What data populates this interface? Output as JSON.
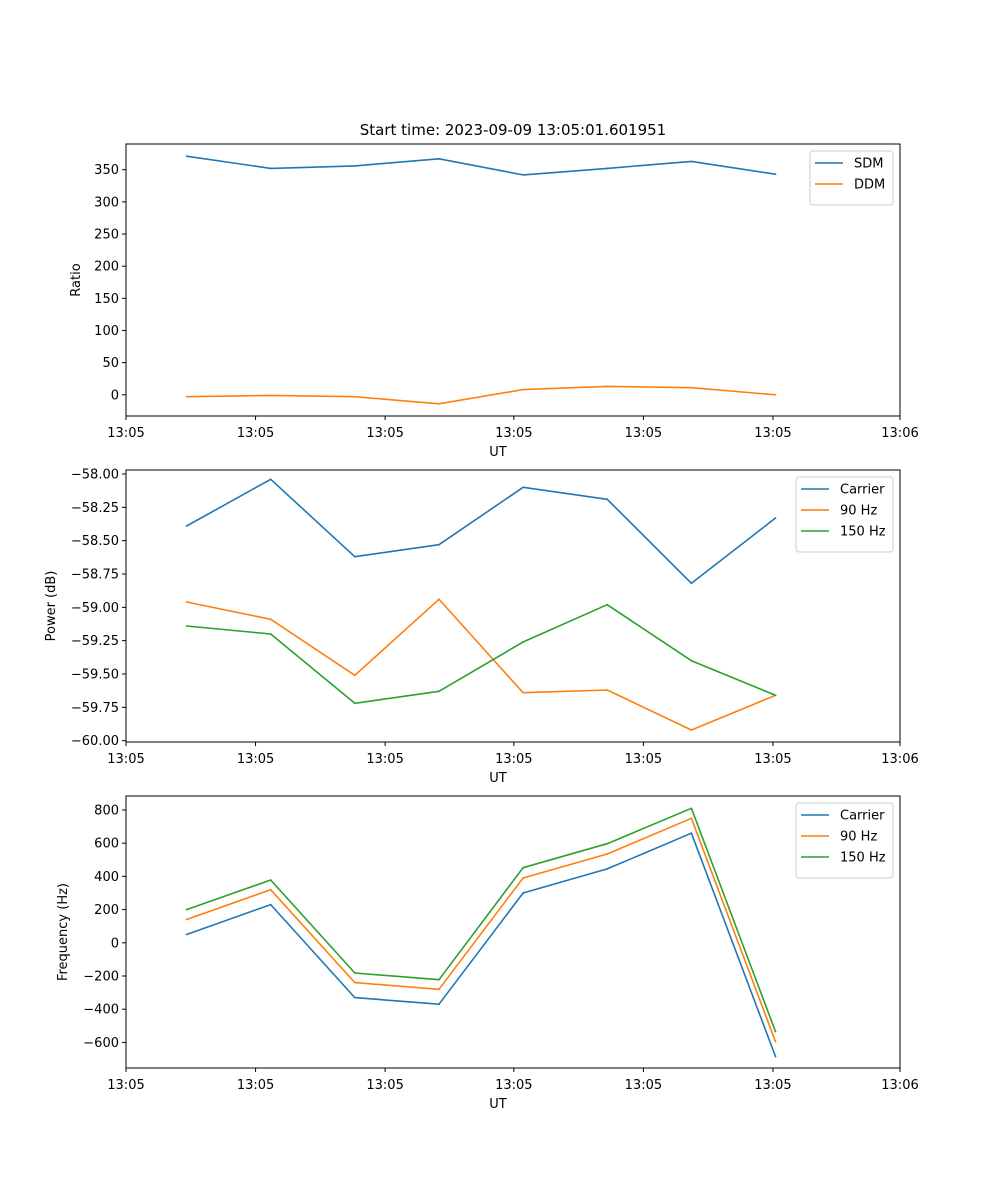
{
  "figure_title": "Start time: 2023-09-09 13:05:01.601951",
  "chart_data": [
    {
      "type": "line",
      "title": "Start time: 2023-09-09 13:05:01.601951",
      "xlabel": "UT",
      "ylabel": "Ratio",
      "x": [
        1,
        2,
        3,
        4,
        5,
        6,
        7,
        8
      ],
      "xlim": [
        0.28,
        9.48
      ],
      "xticks": [
        {
          "value": 0.28,
          "label": "13:05"
        },
        {
          "value": 1.82,
          "label": "13:05"
        },
        {
          "value": 3.36,
          "label": "13:05"
        },
        {
          "value": 4.89,
          "label": "13:05"
        },
        {
          "value": 6.43,
          "label": "13:05"
        },
        {
          "value": 7.97,
          "label": "13:05"
        },
        {
          "value": 9.48,
          "label": "13:06"
        }
      ],
      "ylim": [
        -33,
        390
      ],
      "yticks": [
        0,
        50,
        100,
        150,
        200,
        250,
        300,
        350
      ],
      "legend": "top-right",
      "series": [
        {
          "name": "SDM",
          "color": "#1f77b4",
          "values": [
            371,
            352,
            356,
            367,
            342,
            352,
            363,
            343
          ]
        },
        {
          "name": "DDM",
          "color": "#ff7f0e",
          "values": [
            -3,
            -1,
            -3,
            -14,
            8,
            13,
            11,
            0
          ]
        }
      ]
    },
    {
      "type": "line",
      "title": "",
      "xlabel": "UT",
      "ylabel": "Power (dB)",
      "x": [
        1,
        2,
        3,
        4,
        5,
        6,
        7,
        8
      ],
      "xlim": [
        0.28,
        9.48
      ],
      "xticks": [
        {
          "value": 0.28,
          "label": "13:05"
        },
        {
          "value": 1.82,
          "label": "13:05"
        },
        {
          "value": 3.36,
          "label": "13:05"
        },
        {
          "value": 4.89,
          "label": "13:05"
        },
        {
          "value": 6.43,
          "label": "13:05"
        },
        {
          "value": 7.97,
          "label": "13:05"
        },
        {
          "value": 9.48,
          "label": "13:06"
        }
      ],
      "ylim": [
        -60.01,
        -57.97
      ],
      "yticks": [
        -60.0,
        -59.75,
        -59.5,
        -59.25,
        -59.0,
        -58.75,
        -58.5,
        -58.25,
        -58.0
      ],
      "tick_format": "2dp",
      "legend": "top-right",
      "series": [
        {
          "name": "Carrier",
          "color": "#1f77b4",
          "values": [
            -58.39,
            -58.04,
            -58.62,
            -58.53,
            -58.1,
            -58.19,
            -58.82,
            -58.33
          ]
        },
        {
          "name": "90 Hz",
          "color": "#ff7f0e",
          "values": [
            -58.96,
            -59.09,
            -59.51,
            -58.94,
            -59.64,
            -59.62,
            -59.92,
            -59.66
          ]
        },
        {
          "name": "150 Hz",
          "color": "#2ca02c",
          "values": [
            -59.14,
            -59.2,
            -59.72,
            -59.63,
            -59.26,
            -58.98,
            -59.4,
            -59.66
          ]
        }
      ]
    },
    {
      "type": "line",
      "title": "",
      "xlabel": "UT",
      "ylabel": "Frequency (Hz)",
      "x": [
        1,
        2,
        3,
        4,
        5,
        6,
        7,
        8
      ],
      "xlim": [
        0.28,
        9.48
      ],
      "xticks": [
        {
          "value": 0.28,
          "label": "13:05"
        },
        {
          "value": 1.82,
          "label": "13:05"
        },
        {
          "value": 3.36,
          "label": "13:05"
        },
        {
          "value": 4.89,
          "label": "13:05"
        },
        {
          "value": 6.43,
          "label": "13:05"
        },
        {
          "value": 7.97,
          "label": "13:05"
        },
        {
          "value": 9.48,
          "label": "13:06"
        }
      ],
      "ylim": [
        -754,
        884
      ],
      "yticks": [
        -600,
        -400,
        -200,
        0,
        200,
        400,
        600,
        800
      ],
      "legend": "top-right",
      "series": [
        {
          "name": "Carrier",
          "color": "#1f77b4",
          "values": [
            50,
            230,
            -330,
            -370,
            300,
            445,
            660,
            -685
          ]
        },
        {
          "name": "90 Hz",
          "color": "#ff7f0e",
          "values": [
            140,
            320,
            -240,
            -280,
            390,
            535,
            750,
            -595
          ]
        },
        {
          "name": "150 Hz",
          "color": "#2ca02c",
          "values": [
            200,
            378,
            -182,
            -222,
            452,
            597,
            810,
            -535
          ]
        }
      ]
    }
  ]
}
